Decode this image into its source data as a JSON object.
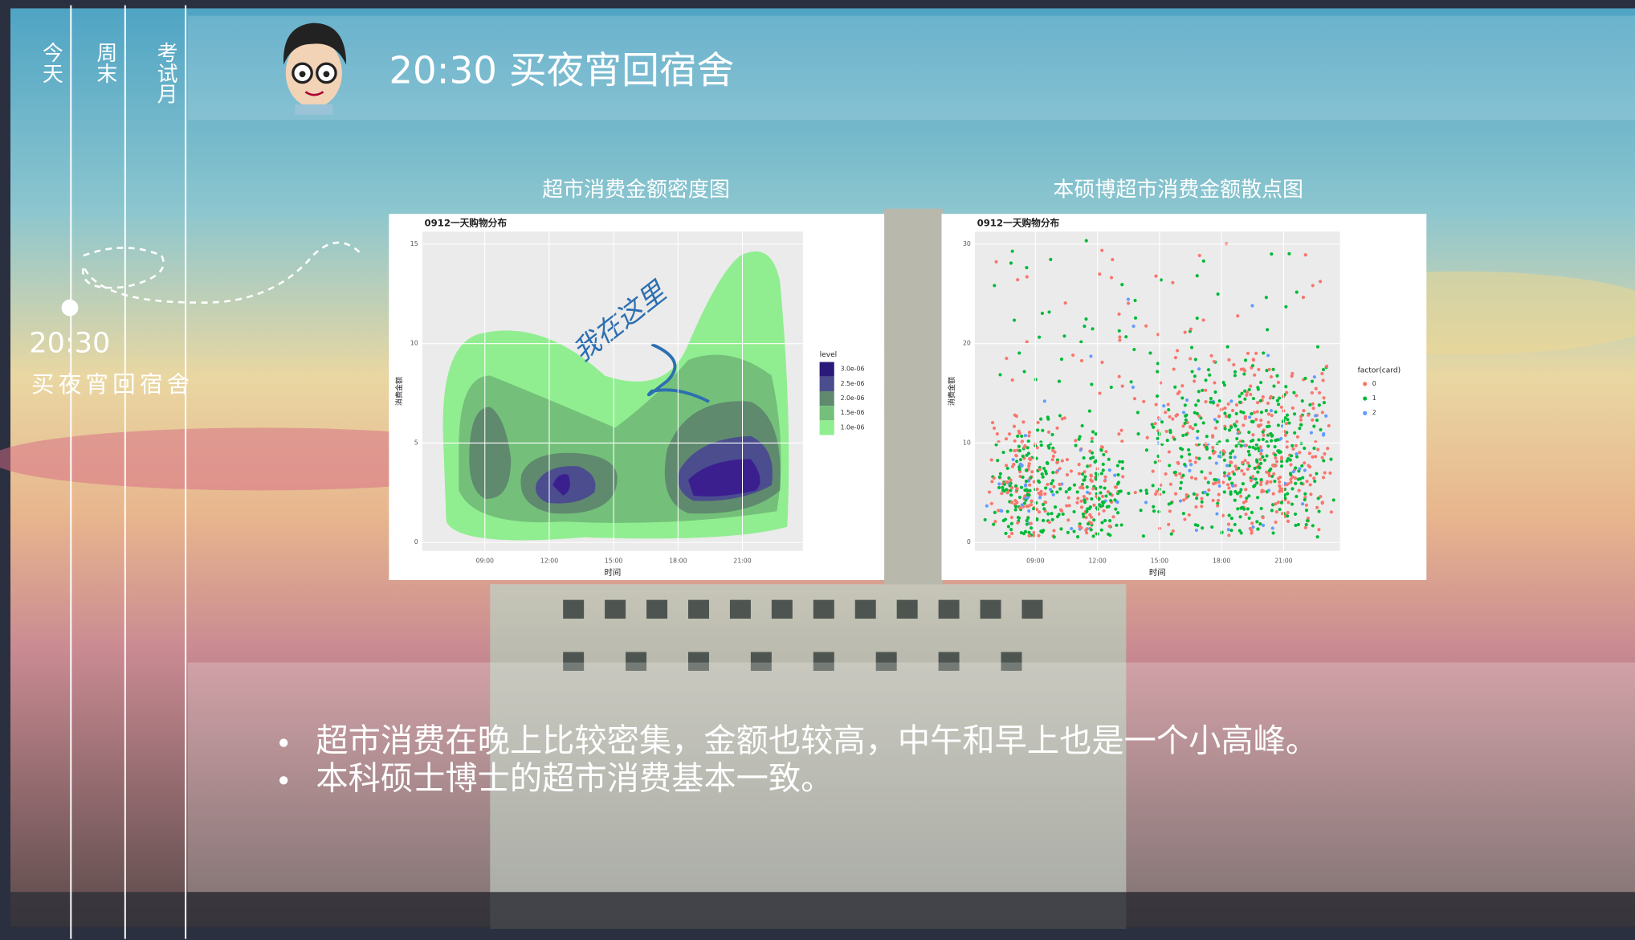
{
  "nav": {
    "items": [
      "今天",
      "周末",
      "考试月"
    ]
  },
  "header": {
    "title": "20:30 买夜宵回宿舍"
  },
  "timeline": {
    "time": "20:30",
    "event": "买夜宵回宿舍"
  },
  "charts": [
    {
      "title": "超市消费金额密度图",
      "subtitle": "0912一天购物分布",
      "x_label": "时间",
      "y_label": "消费金额",
      "x_ticks": [
        "09:00",
        "12:00",
        "15:00",
        "18:00",
        "21:00"
      ],
      "y_ticks": [
        "0",
        "5",
        "10",
        "15"
      ],
      "legend_title": "level",
      "legend_items": [
        "3.0e-06",
        "2.5e-06",
        "2.0e-06",
        "1.5e-06",
        "1.0e-06"
      ],
      "annotation": "我在这里"
    },
    {
      "title": "本硕博超市消费金额散点图",
      "subtitle": "0912一天购物分布",
      "x_label": "时间",
      "y_label": "消费金额",
      "x_ticks": [
        "09:00",
        "12:00",
        "15:00",
        "18:00",
        "21:00"
      ],
      "y_ticks": [
        "0",
        "10",
        "20",
        "30"
      ],
      "legend_title": "factor(card)",
      "legend_items": [
        "0",
        "1",
        "2"
      ]
    }
  ],
  "bullets": [
    "超市消费在晚上比较密集，金额也较高，中午和早上也是一个小高峰。",
    "本科硕士博士的超市消费基本一致。"
  ]
}
